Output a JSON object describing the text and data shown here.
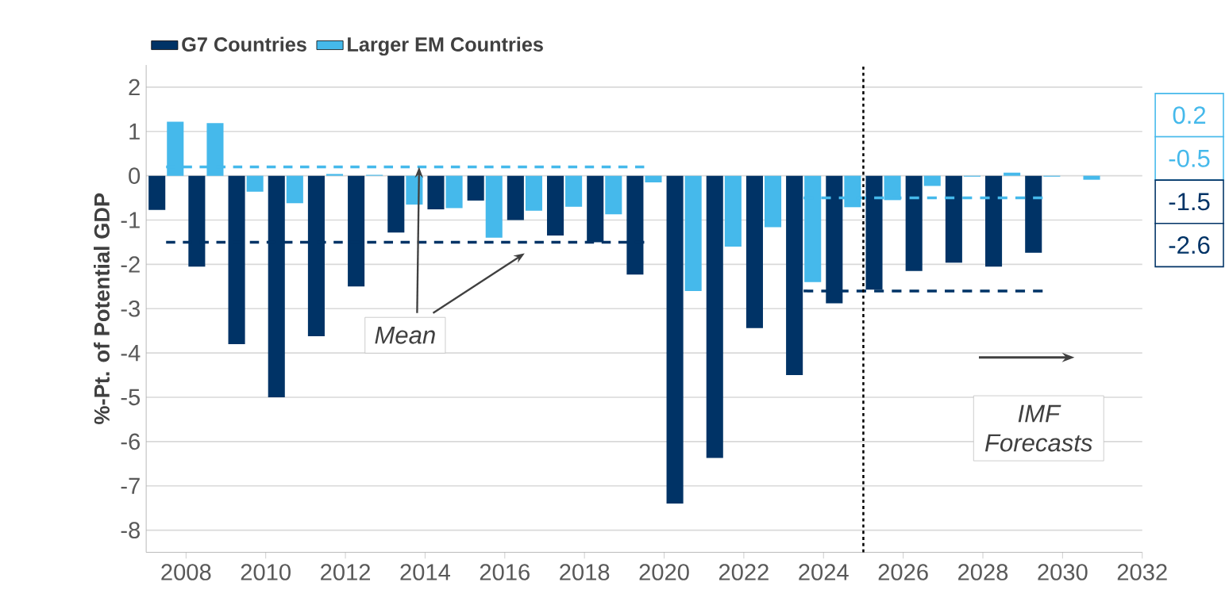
{
  "chart_data": {
    "type": "bar",
    "ylabel": "%-Pt. of Potential GDP",
    "xlim": [
      2007,
      2032
    ],
    "xticks": [
      2008,
      2010,
      2012,
      2014,
      2016,
      2018,
      2020,
      2022,
      2024,
      2026,
      2028,
      2030,
      2032
    ],
    "ylim": [
      -8.5,
      2.5
    ],
    "yticks": [
      -8,
      -7,
      -6,
      -5,
      -4,
      -3,
      -2,
      -1,
      0,
      1,
      2
    ],
    "x": [
      2007.5,
      2008.5,
      2009.5,
      2010.5,
      2011.5,
      2012.5,
      2013.5,
      2014.5,
      2015.5,
      2016.5,
      2017.5,
      2018.5,
      2019.5,
      2020.5,
      2021.5,
      2022.5,
      2023.5,
      2024.5,
      2025.5,
      2026.5,
      2027.5,
      2028.5,
      2029.5,
      2030.5
    ],
    "series": [
      {
        "name": "G7 Countries",
        "color": "#003366",
        "values": [
          -0.77,
          -2.05,
          -3.8,
          -5.0,
          -3.62,
          -2.5,
          -1.28,
          -0.76,
          -0.56,
          -1.0,
          -1.35,
          -1.5,
          -2.23,
          -7.4,
          -6.37,
          -3.44,
          -4.5,
          -2.88,
          -2.57,
          -2.15,
          -1.96,
          -2.05,
          -1.74,
          null
        ]
      },
      {
        "name": "Larger EM Countries",
        "color": "#45b9eb",
        "values": [
          1.22,
          1.19,
          -0.36,
          -0.62,
          0.04,
          0.02,
          -0.65,
          -0.73,
          -1.4,
          -0.79,
          -0.7,
          -0.87,
          -0.15,
          -2.6,
          -1.6,
          -1.16,
          -2.4,
          -0.71,
          -0.55,
          -0.23,
          -0.02,
          0.07,
          -0.02,
          -0.09
        ]
      },
      {
        "type": "line",
        "line_style": "dashed",
        "color": "#45b9eb",
        "x": [
          2007.5,
          2019.5
        ],
        "values": [
          0.2,
          0.2
        ]
      },
      {
        "type": "line",
        "line_style": "dashed",
        "color": "#45b9eb",
        "x": [
          2023.5,
          2029.5
        ],
        "values": [
          -0.5,
          -0.5
        ]
      },
      {
        "type": "line",
        "line_style": "dashed",
        "color": "#003366",
        "x": [
          2007.5,
          2019.5
        ],
        "values": [
          -1.5,
          -1.5
        ]
      },
      {
        "type": "line",
        "line_style": "dashed",
        "color": "#003366",
        "x": [
          2023.5,
          2029.5
        ],
        "values": [
          -2.6,
          -2.6
        ]
      }
    ],
    "ref_lines": [
      {
        "axis": "x",
        "value": 2025,
        "line_style": "dotted",
        "color": "#000000"
      }
    ],
    "annotations": [
      {
        "text": "Mean",
        "x": 2013.85,
        "y": 0.2
      },
      "IMF Forecasts",
      "0.2",
      "-0.5",
      "-1.5",
      "-2.6"
    ],
    "grid": "y",
    "legend": "top left",
    "marker": "none"
  }
}
